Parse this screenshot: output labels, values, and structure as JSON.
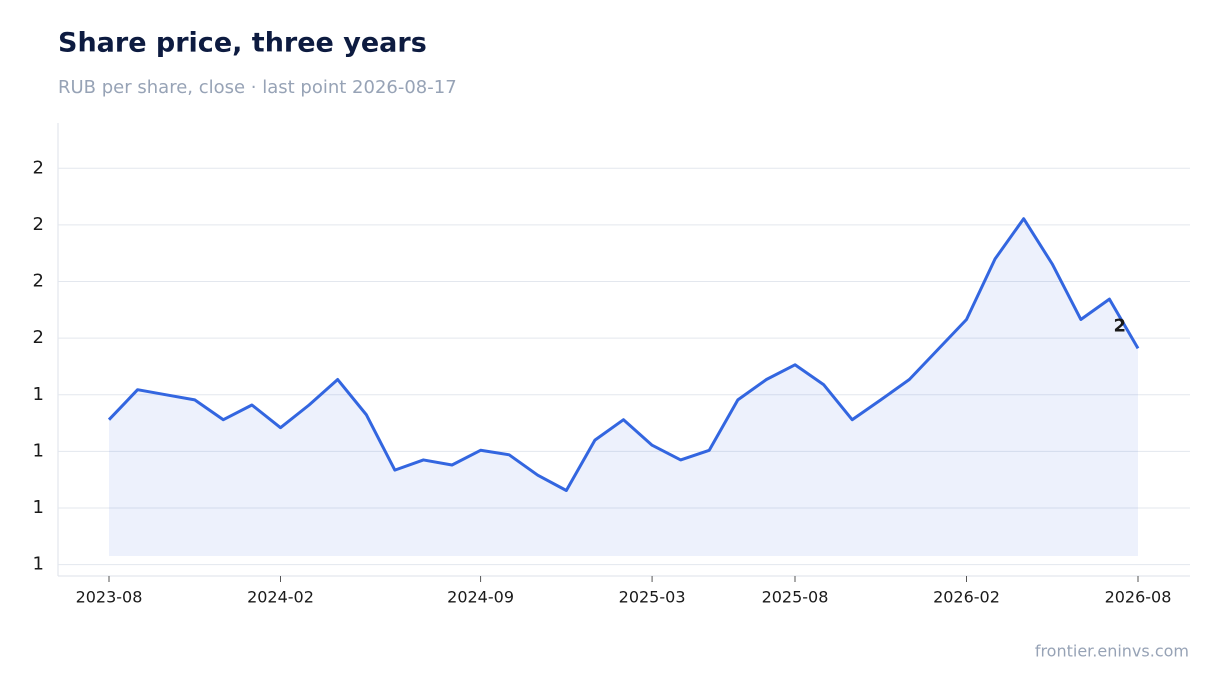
{
  "chart_data": {
    "type": "line",
    "title": "Share price, three years",
    "subtitle": "RUB per share, close · last point 2026-08-17",
    "source": "frontier.eninvs.com",
    "x": [
      "2023-08",
      "2023-09",
      "2023-10",
      "2023-11",
      "2023-12",
      "2024-01",
      "2024-02",
      "2024-03",
      "2024-04",
      "2024-05",
      "2024-06",
      "2024-07",
      "2024-08",
      "2024-09",
      "2024-10",
      "2024-11",
      "2024-12",
      "2025-01",
      "2025-02",
      "2025-03",
      "2025-04",
      "2025-05",
      "2025-06",
      "2025-07",
      "2025-08",
      "2025-09",
      "2025-10",
      "2025-11",
      "2025-12",
      "2026-01",
      "2026-02",
      "2026-03",
      "2026-04",
      "2026-05",
      "2026-06",
      "2026-07",
      "2026-08"
    ],
    "series": [
      {
        "color": "#3366e0",
        "values": [
          1.406,
          1.459,
          1.45,
          1.441,
          1.406,
          1.432,
          1.392,
          1.432,
          1.477,
          1.415,
          1.317,
          1.335,
          1.326,
          1.352,
          1.344,
          1.308,
          1.281,
          1.37,
          1.406,
          1.361,
          1.335,
          1.352,
          1.441,
          1.477,
          1.503,
          1.468,
          1.406,
          1.441,
          1.477,
          1.53,
          1.583,
          1.69,
          1.761,
          1.681,
          1.583,
          1.619,
          1.532
        ],
        "value_labels": [
          null,
          null,
          null,
          null,
          null,
          null,
          null,
          null,
          null,
          null,
          null,
          null,
          null,
          null,
          null,
          null,
          null,
          null,
          null,
          null,
          null,
          null,
          null,
          null,
          null,
          null,
          null,
          null,
          null,
          null,
          null,
          null,
          null,
          null,
          null,
          null,
          "2"
        ]
      }
    ],
    "xticks": [
      "2023-08",
      "2024-02",
      "2024-09",
      "2025-03",
      "2025-08",
      "2026-02",
      "2026-08"
    ],
    "ylim": [
      1.13,
      1.93
    ],
    "yticks": [
      {
        "value": 1.15,
        "label": "1"
      },
      {
        "value": 1.25,
        "label": "1"
      },
      {
        "value": 1.35,
        "label": "1"
      },
      {
        "value": 1.45,
        "label": "1"
      },
      {
        "value": 1.55,
        "label": "2"
      },
      {
        "value": 1.65,
        "label": "2"
      },
      {
        "value": 1.75,
        "label": "2"
      },
      {
        "value": 1.85,
        "label": "2"
      }
    ],
    "grid": true
  }
}
